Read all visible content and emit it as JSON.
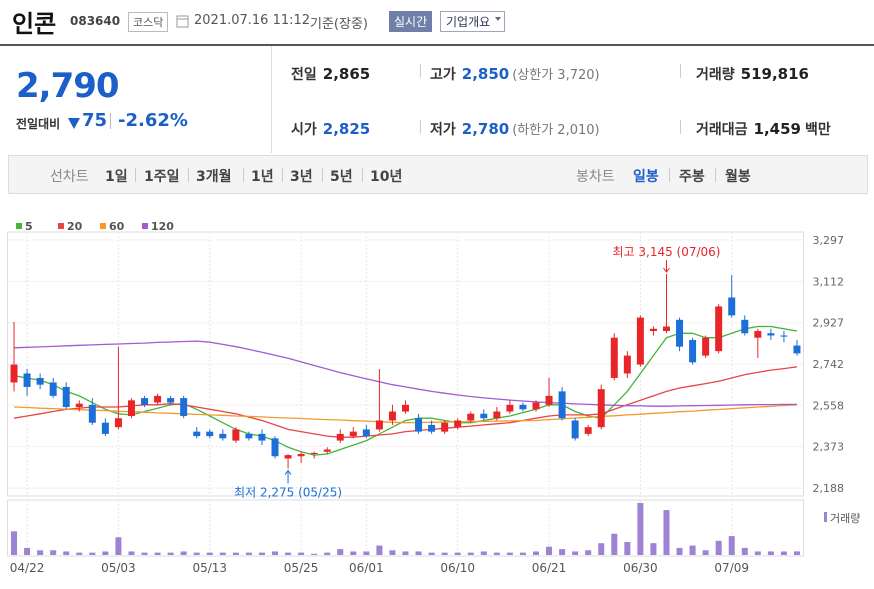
{
  "header": {
    "name": "인콘",
    "code": "083640",
    "market": "코스닥",
    "datetime": "2021.07.16 11:12",
    "basis": "기준(장중)",
    "realtime": "실시간",
    "company": "기업개요"
  },
  "quote": {
    "price": "2,790",
    "change_label": "전일대비",
    "change": "75",
    "change_pct": "-2.62%"
  },
  "stats": [
    {
      "label": "전일",
      "value": "2,865"
    },
    {
      "label": "고가",
      "value": "2,850",
      "note": "(상한가 3,720)"
    },
    {
      "label": "거래량",
      "value": "519,816"
    },
    {
      "label": "시가",
      "value": "2,825"
    },
    {
      "label": "저가",
      "value": "2,780",
      "note": "(하한가 2,010)"
    },
    {
      "label": "거래대금",
      "value": "1,459",
      "unit": "백만"
    }
  ],
  "tabs": {
    "line_label": "선차트",
    "periods": [
      "1일",
      "1주일",
      "3개월",
      "1년",
      "3년",
      "5년",
      "10년"
    ],
    "candle_label": "봉차트",
    "candle_periods": [
      "일봉",
      "주봉",
      "월봉"
    ]
  },
  "chart_data": {
    "type": "candlestick",
    "up_color": "#e8262a",
    "down_color": "#1c6fd8",
    "categories": [
      null,
      "04/22",
      null,
      null,
      null,
      null,
      null,
      null,
      "05/03",
      null,
      null,
      null,
      null,
      null,
      null,
      "05/13",
      null,
      null,
      null,
      null,
      null,
      null,
      "05/25",
      null,
      null,
      null,
      null,
      "06/01",
      null,
      null,
      null,
      null,
      null,
      null,
      "06/10",
      null,
      null,
      null,
      null,
      null,
      null,
      "06/21",
      null,
      null,
      null,
      null,
      null,
      null,
      "06/30",
      null,
      null,
      null,
      null,
      null,
      null,
      "07/09",
      null,
      null,
      null,
      null,
      null
    ],
    "open": [
      2660,
      2700,
      2680,
      2660,
      2640,
      2550,
      2560,
      2480,
      2460,
      2510,
      2590,
      2570,
      2590,
      2590,
      2440,
      2440,
      2430,
      2400,
      2430,
      2430,
      2410,
      2320,
      2330,
      2340,
      2350,
      2400,
      2420,
      2450,
      2450,
      2490,
      2530,
      2500,
      2470,
      2440,
      2460,
      2490,
      2520,
      2500,
      2530,
      2560,
      2540,
      2560,
      2620,
      2490,
      2430,
      2460,
      2680,
      2700,
      2740,
      2890,
      2890,
      2940,
      2850,
      2780,
      2800,
      3040,
      2940,
      2860,
      2880,
      2870,
      2825
    ],
    "high": [
      2930,
      2720,
      2700,
      2680,
      2660,
      2580,
      2590,
      2500,
      2820,
      2590,
      2600,
      2610,
      2600,
      2600,
      2460,
      2450,
      2450,
      2460,
      2440,
      2450,
      2420,
      2340,
      2350,
      2350,
      2370,
      2450,
      2460,
      2470,
      2720,
      2560,
      2580,
      2520,
      2490,
      2490,
      2500,
      2530,
      2540,
      2550,
      2580,
      2570,
      2580,
      2680,
      2640,
      2500,
      2470,
      2650,
      2880,
      2800,
      2960,
      2910,
      3145,
      2950,
      2860,
      2870,
      3010,
      3140,
      2960,
      2900,
      2900,
      2890,
      2850
    ],
    "low": [
      2620,
      2600,
      2630,
      2590,
      2540,
      2530,
      2470,
      2420,
      2450,
      2500,
      2550,
      2560,
      2560,
      2500,
      2410,
      2410,
      2400,
      2390,
      2400,
      2380,
      2320,
      2275,
      2300,
      2320,
      2340,
      2390,
      2410,
      2410,
      2440,
      2470,
      2520,
      2430,
      2430,
      2430,
      2450,
      2480,
      2490,
      2490,
      2520,
      2530,
      2530,
      2550,
      2490,
      2400,
      2420,
      2450,
      2670,
      2680,
      2730,
      2870,
      2880,
      2800,
      2740,
      2770,
      2790,
      2950,
      2870,
      2770,
      2850,
      2840,
      2780
    ],
    "close": [
      2740,
      2640,
      2650,
      2600,
      2550,
      2565,
      2480,
      2430,
      2500,
      2580,
      2560,
      2600,
      2570,
      2510,
      2420,
      2420,
      2410,
      2450,
      2410,
      2400,
      2330,
      2335,
      2340,
      2345,
      2360,
      2430,
      2440,
      2420,
      2490,
      2530,
      2560,
      2440,
      2440,
      2480,
      2490,
      2520,
      2500,
      2530,
      2560,
      2540,
      2570,
      2600,
      2500,
      2410,
      2460,
      2630,
      2860,
      2780,
      2950,
      2900,
      2910,
      2820,
      2750,
      2860,
      3000,
      2960,
      2880,
      2890,
      2870,
      2865,
      2790
    ],
    "series": [
      {
        "name": "5",
        "color": "#46b33e",
        "values": [
          2690,
          2680,
          2670,
          2650,
          2620,
          2600,
          2570,
          2540,
          2520,
          2515,
          2530,
          2545,
          2560,
          2565,
          2540,
          2510,
          2480,
          2450,
          2430,
          2420,
          2400,
          2370,
          2350,
          2335,
          2340,
          2360,
          2380,
          2400,
          2430,
          2460,
          2490,
          2500,
          2500,
          2490,
          2480,
          2480,
          2490,
          2500,
          2510,
          2525,
          2540,
          2560,
          2560,
          2530,
          2510,
          2500,
          2560,
          2620,
          2700,
          2780,
          2860,
          2880,
          2880,
          2860,
          2860,
          2880,
          2900,
          2910,
          2910,
          2900,
          2890
        ]
      },
      {
        "name": "20",
        "color": "#e84545",
        "values": [
          2500,
          2510,
          2520,
          2530,
          2540,
          2545,
          2550,
          2550,
          2550,
          2555,
          2560,
          2560,
          2565,
          2560,
          2550,
          2540,
          2530,
          2520,
          2505,
          2490,
          2470,
          2450,
          2440,
          2430,
          2420,
          2415,
          2415,
          2420,
          2425,
          2430,
          2440,
          2445,
          2450,
          2455,
          2460,
          2465,
          2470,
          2475,
          2480,
          2490,
          2500,
          2510,
          2515,
          2515,
          2515,
          2520,
          2540,
          2560,
          2580,
          2600,
          2620,
          2635,
          2645,
          2655,
          2665,
          2680,
          2695,
          2705,
          2715,
          2722,
          2730
        ]
      },
      {
        "name": "60",
        "color": "#f39a2b",
        "values": [
          2550,
          2548,
          2545,
          2543,
          2541,
          2538,
          2536,
          2534,
          2531,
          2529,
          2527,
          2524,
          2522,
          2520,
          2517,
          2515,
          2513,
          2510,
          2508,
          2506,
          2503,
          2501,
          2499,
          2496,
          2494,
          2492,
          2489,
          2487,
          2485,
          2482,
          2480,
          2481,
          2482,
          2483,
          2484,
          2485,
          2486,
          2487,
          2488,
          2489,
          2490,
          2494,
          2497,
          2501,
          2504,
          2508,
          2511,
          2515,
          2518,
          2522,
          2525,
          2529,
          2532,
          2536,
          2539,
          2543,
          2546,
          2550,
          2553,
          2557,
          2560
        ]
      },
      {
        "name": "120",
        "color": "#a25ad6",
        "values": [
          2815,
          2817,
          2819,
          2821,
          2824,
          2826,
          2828,
          2830,
          2832,
          2834,
          2836,
          2839,
          2841,
          2843,
          2845,
          2840,
          2830,
          2820,
          2808,
          2795,
          2782,
          2768,
          2752,
          2736,
          2720,
          2704,
          2690,
          2676,
          2663,
          2650,
          2640,
          2630,
          2620,
          2612,
          2604,
          2597,
          2591,
          2586,
          2581,
          2577,
          2573,
          2570,
          2567,
          2564,
          2562,
          2560,
          2558,
          2556,
          2555,
          2554,
          2554,
          2555,
          2556,
          2557,
          2558,
          2559,
          2560,
          2561,
          2561,
          2562,
          2562
        ]
      }
    ],
    "volume": {
      "name": "거래량",
      "color": "#9e82d3",
      "values": [
        3400000,
        1020000,
        680000,
        680000,
        510000,
        340000,
        340000,
        510000,
        2550000,
        510000,
        340000,
        340000,
        340000,
        510000,
        340000,
        340000,
        340000,
        340000,
        340000,
        340000,
        510000,
        340000,
        340000,
        170000,
        340000,
        850000,
        510000,
        510000,
        1360000,
        680000,
        510000,
        510000,
        340000,
        340000,
        340000,
        340000,
        510000,
        340000,
        340000,
        340000,
        510000,
        1190000,
        850000,
        510000,
        680000,
        1700000,
        3060000,
        1870000,
        7480000,
        1700000,
        6460000,
        1020000,
        1360000,
        680000,
        2040000,
        2720000,
        1020000,
        510000,
        510000,
        510000,
        519816
      ]
    },
    "high_label": "최고 3,145 (07/06)",
    "low_label": "최저 2,275 (05/25)",
    "ylim": [
      2188,
      3297
    ],
    "yticks": [
      {
        "value": 2188,
        "label": "2,188"
      },
      {
        "value": 2373,
        "label": "2,373"
      },
      {
        "value": 2558,
        "label": "2,558"
      },
      {
        "value": 2742,
        "label": "2,742"
      },
      {
        "value": 2927,
        "label": "2,927"
      },
      {
        "value": 3112,
        "label": "3,112"
      },
      {
        "value": 3297,
        "label": "3,297"
      }
    ],
    "grid": true
  }
}
